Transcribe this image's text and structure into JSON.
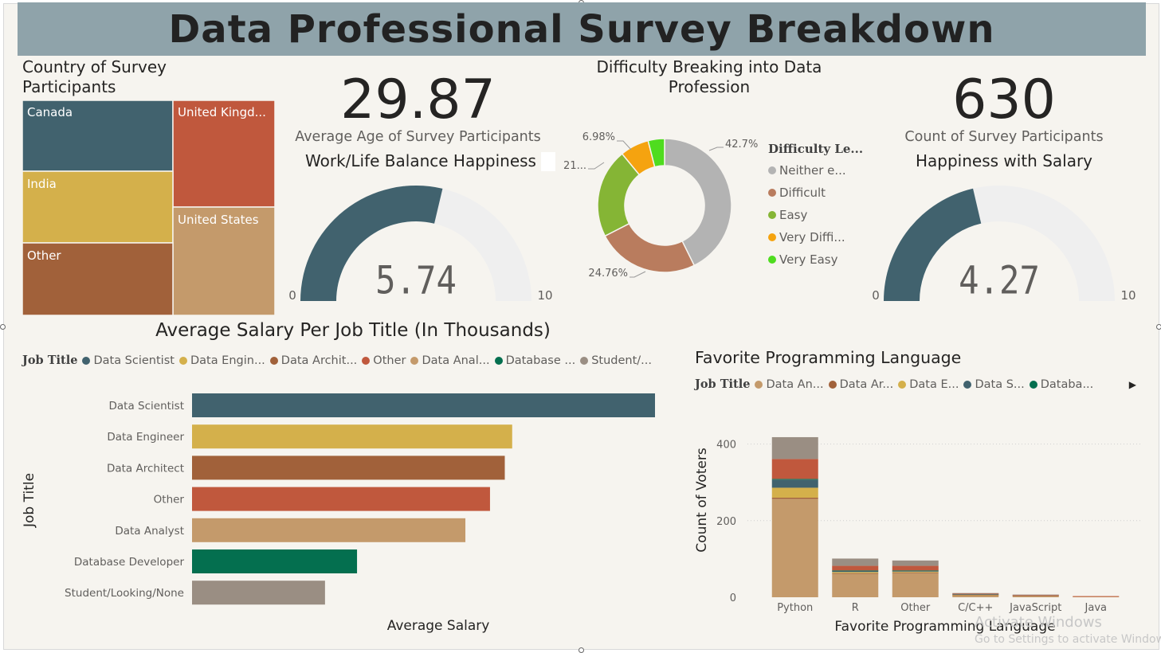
{
  "dashboard": {
    "title": "Data Professional Survey Breakdown"
  },
  "treemap": {
    "title_line1": "Country of Survey",
    "title_line2": "Participants",
    "tiles": [
      {
        "label": "Canada",
        "color": "#41626e"
      },
      {
        "label": "United Kingd...",
        "color": "#c0583d"
      },
      {
        "label": "India",
        "color": "#d4b04b"
      },
      {
        "label": "United States",
        "color": "#c49a6b"
      },
      {
        "label": "Other",
        "color": "#a1613a"
      }
    ]
  },
  "card_age": {
    "value": "29.87",
    "label": "Average Age of Survey Participants"
  },
  "gauge_worklife": {
    "title": "Work/Life Balance Happiness",
    "value": 5.74,
    "value_label": "5.74",
    "min": 0,
    "max": 10,
    "min_label": "0",
    "max_label": "10",
    "fill_color": "#41626e",
    "track_color": "#efefef"
  },
  "donut": {
    "title_line1": "Difficulty Breaking into Data",
    "title_line2": "Profession",
    "legend_title": "Difficulty Le...",
    "slices": [
      {
        "name": "Neither e...",
        "percent": 42.7,
        "label": "42.7%",
        "color": "#b3b3b3"
      },
      {
        "name": "Difficult",
        "percent": 24.76,
        "label": "24.76%",
        "color": "#b97c5e"
      },
      {
        "name": "Easy",
        "percent": 21.59,
        "label": "21...",
        "color": "#85b535"
      },
      {
        "name": "Very Diffi...",
        "percent": 6.98,
        "label": "6.98%",
        "color": "#f5a30f"
      },
      {
        "name": "Very Easy",
        "percent": 3.97,
        "label": "",
        "color": "#4fdc1f"
      }
    ]
  },
  "card_count": {
    "value": "630",
    "label": "Count of Survey Participants"
  },
  "gauge_salary": {
    "title": "Happiness with Salary",
    "value": 4.27,
    "value_label": "4.27",
    "min": 0,
    "max": 10,
    "min_label": "0",
    "max_label": "10",
    "fill_color": "#41626e",
    "track_color": "#efefef"
  },
  "salary_chart": {
    "title": "Average Salary Per Job Title (In Thousands)",
    "legend_title": "Job Title",
    "legend": [
      {
        "name": "Data Scientist",
        "color": "#41626e"
      },
      {
        "name": "Data Engin...",
        "color": "#d4b04b"
      },
      {
        "name": "Data Archit...",
        "color": "#a1613a"
      },
      {
        "name": "Other",
        "color": "#c0583d"
      },
      {
        "name": "Data Anal...",
        "color": "#c49a6b"
      },
      {
        "name": "Database ...",
        "color": "#046f4f"
      },
      {
        "name": "Student/...",
        "color": "#9a8e83"
      }
    ],
    "xlabel": "Average Salary",
    "ylabel": "Job Title"
  },
  "lang_chart": {
    "title": "Favorite Programming Language",
    "legend_title": "Job Title",
    "legend": [
      {
        "name": "Data An...",
        "color": "#c49a6b"
      },
      {
        "name": "Data Ar...",
        "color": "#a1613a"
      },
      {
        "name": "Data E...",
        "color": "#d4b04b"
      },
      {
        "name": "Data S...",
        "color": "#41626e"
      },
      {
        "name": "Databa...",
        "color": "#046f4f"
      }
    ],
    "xlabel": "Favorite Programming Language",
    "ylabel": "Count of Voters"
  },
  "chart_data": [
    {
      "type": "bar",
      "orientation": "horizontal",
      "title": "Average Salary Per Job Title (In Thousands)",
      "xlabel": "Average Salary",
      "ylabel": "Job Title",
      "categories": [
        "Data Scientist",
        "Data Engineer",
        "Data Architect",
        "Other",
        "Data Analyst",
        "Database Developer",
        "Student/Looking/None"
      ],
      "values": [
        94,
        65,
        63.5,
        60.5,
        55.5,
        33.5,
        27
      ],
      "colors": [
        "#41626e",
        "#d4b04b",
        "#a1613a",
        "#c0583d",
        "#c49a6b",
        "#046f4f",
        "#9a8e83"
      ],
      "xlim": [
        0,
        94
      ]
    },
    {
      "type": "bar",
      "stacked": true,
      "title": "Favorite Programming Language",
      "xlabel": "Favorite Programming Language",
      "ylabel": "Count of Voters",
      "categories": [
        "Python",
        "R",
        "Other",
        "C/C++",
        "JavaScript",
        "Java"
      ],
      "ylim": [
        0,
        420
      ],
      "yticks": [
        0,
        200,
        400
      ],
      "series": [
        {
          "name": "Data Analyst",
          "color": "#c49a6b",
          "values": [
            257,
            61,
            63,
            5,
            4,
            2
          ]
        },
        {
          "name": "Data Architect",
          "color": "#a1613a",
          "values": [
            3,
            2,
            2,
            1,
            1,
            0
          ]
        },
        {
          "name": "Data Engineer",
          "color": "#d4b04b",
          "values": [
            26,
            3,
            2,
            1,
            0,
            0
          ]
        },
        {
          "name": "Data Scientist",
          "color": "#41626e",
          "values": [
            21,
            3,
            2,
            1,
            0,
            0
          ]
        },
        {
          "name": "Database Developer",
          "color": "#046f4f",
          "values": [
            2,
            1,
            1,
            0,
            0,
            0
          ]
        },
        {
          "name": "Other",
          "color": "#c0583d",
          "values": [
            52,
            12,
            12,
            2,
            1,
            1
          ]
        },
        {
          "name": "Student/Looking/None",
          "color": "#9a8e83",
          "values": [
            57,
            19,
            14,
            1,
            1,
            0
          ]
        }
      ]
    }
  ],
  "watermark": {
    "line1": "Activate Windows",
    "line2": "Go to Settings to activate Windows."
  }
}
